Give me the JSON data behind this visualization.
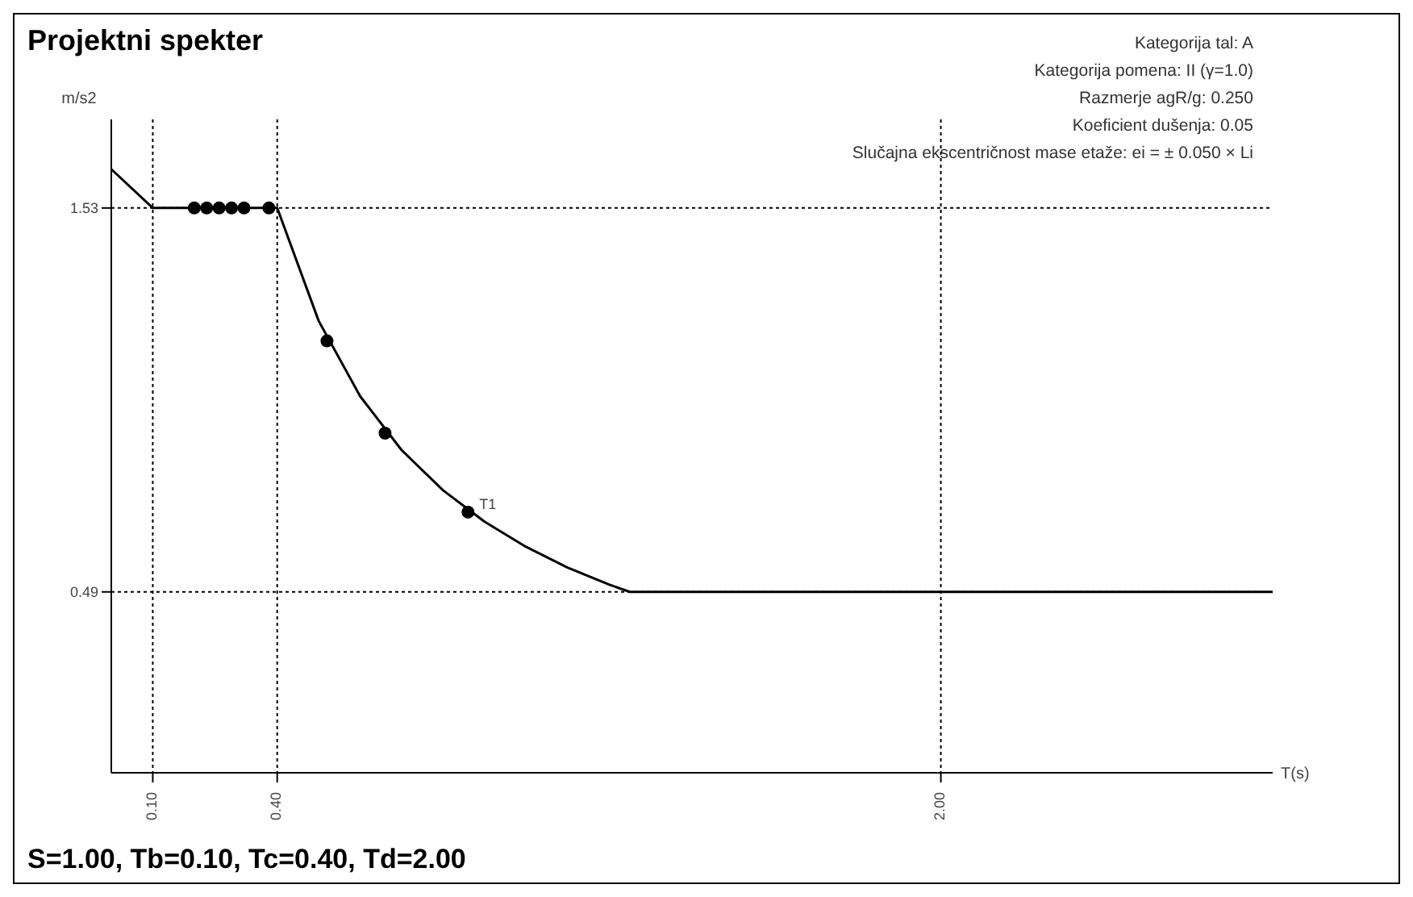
{
  "chart_data": {
    "type": "line",
    "title": "Projektni spekter",
    "xlabel": "T(s)",
    "ylabel": "m/s2",
    "xlim": [
      0,
      2.8
    ],
    "ylim": [
      0,
      1.77
    ],
    "xticks": [
      {
        "value": 0.1,
        "label": "0.10"
      },
      {
        "value": 0.4,
        "label": "0.40"
      },
      {
        "value": 2.0,
        "label": "2.00"
      }
    ],
    "yticks": [
      0.49,
      1.53
    ],
    "grid": true,
    "line_style": "dotted",
    "series": [
      {
        "color": "#000000",
        "marker": "none",
        "line_style": "solid",
        "x": [
          0,
          0.1,
          0.4,
          0.5,
          0.6,
          0.7,
          0.8,
          0.9,
          1.0,
          1.1,
          1.2,
          1.25,
          2.8
        ],
        "values": [
          1.635,
          1.53,
          1.53,
          1.224,
          1.02,
          0.874,
          0.765,
          0.68,
          0.612,
          0.556,
          0.51,
          0.49,
          0.49
        ]
      },
      {
        "type": "scatter",
        "color": "#000000",
        "marker": "circle",
        "x": [
          0.2,
          0.23,
          0.26,
          0.29,
          0.32,
          0.38,
          0.52,
          0.66,
          0.86
        ],
        "values": [
          1.53,
          1.53,
          1.53,
          1.53,
          1.53,
          1.53,
          1.17,
          0.92,
          0.706
        ]
      }
    ],
    "annotations": [
      "Kategorija tal: A",
      "Kategorija pomena: II (γ=1.0)",
      "Razmerje agR/g: 0.250",
      "Koeficient dušenja: 0.05",
      "Slučajna ekscentričnost mase etaže: ei = ± 0.050 × Li",
      {
        "text": "T1",
        "x": 0.86,
        "y": 0.706
      },
      "S=1.00, Tb=0.10, Tc=0.40, Td=2.00"
    ]
  }
}
